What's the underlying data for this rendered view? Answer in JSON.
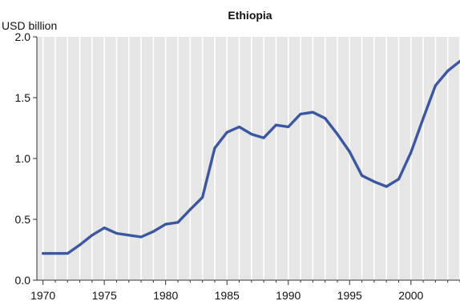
{
  "chart_data": {
    "type": "line",
    "title": "Ethiopia",
    "ylabel": "USD billion",
    "xlabel": "",
    "xlim": [
      1969.5,
      2004
    ],
    "ylim": [
      0,
      2.0
    ],
    "yticks": [
      "0.0",
      "0.5",
      "1.0",
      "1.5",
      "2.0"
    ],
    "yticks_values": [
      0,
      0.5,
      1.0,
      1.5,
      2.0
    ],
    "xticks": [
      "1970",
      "1975",
      "1980",
      "1985",
      "1990",
      "1995",
      "2000"
    ],
    "xticks_values": [
      1970,
      1975,
      1980,
      1985,
      1990,
      1995,
      2000
    ],
    "grid": "vertical",
    "series": [
      {
        "x": [
          1970,
          1971,
          1972,
          1973,
          1974,
          1975,
          1976,
          1977,
          1978,
          1979,
          1980,
          1981,
          1982,
          1983,
          1984,
          1985,
          1986,
          1987,
          1988,
          1989,
          1990,
          1991,
          1992,
          1993,
          1994,
          1995,
          1996,
          1997,
          1998,
          1999,
          2000,
          2001,
          2002,
          2003,
          2004
        ],
        "values": [
          0.22,
          0.22,
          0.22,
          0.29,
          0.37,
          0.43,
          0.385,
          0.37,
          0.355,
          0.4,
          0.46,
          0.475,
          0.58,
          0.68,
          1.085,
          1.215,
          1.26,
          1.2,
          1.17,
          1.275,
          1.26,
          1.365,
          1.38,
          1.33,
          1.2,
          1.055,
          0.86,
          0.81,
          0.77,
          0.83,
          1.05,
          1.33,
          1.6,
          1.72,
          1.8
        ]
      }
    ],
    "colors": {
      "line": "#3b57a0",
      "plot_bg": "#e6e6e6",
      "grid": "#ffffff"
    }
  }
}
